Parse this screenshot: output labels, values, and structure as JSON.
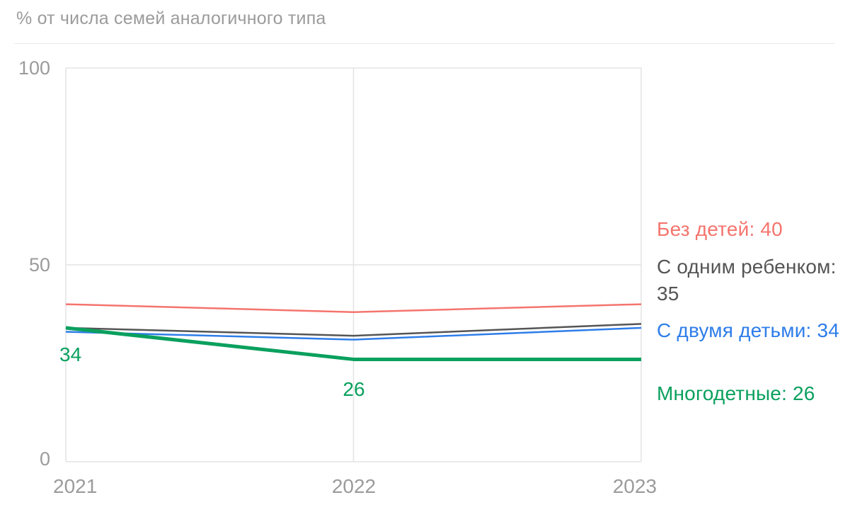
{
  "title": "% от числа семей аналогичного типа",
  "chart_data": {
    "type": "line",
    "title": "% от числа семей аналогичного типа",
    "x": [
      "2021",
      "2022",
      "2023"
    ],
    "series": [
      {
        "name": "Без детей",
        "values": [
          40,
          38,
          40
        ],
        "color": "#f5746e",
        "width": 2.5
      },
      {
        "name": "С одним ребенком",
        "values": [
          34,
          32,
          35
        ],
        "color": "#555555",
        "width": 2.5
      },
      {
        "name": "С двумя детьми",
        "values": [
          33,
          31,
          34
        ],
        "color": "#2e7de9",
        "width": 2.5
      },
      {
        "name": "Многодетные",
        "values": [
          34,
          26,
          26
        ],
        "color": "#0aa05e",
        "width": 5
      }
    ],
    "ylim": [
      0,
      100
    ],
    "yticks": [
      0,
      50,
      100
    ],
    "xticks": [
      "2021",
      "2022",
      "2023"
    ],
    "grid": "on",
    "legend_position": "right",
    "point_labels": [
      {
        "series": "Многодетные",
        "x_index": 0,
        "text": "34"
      },
      {
        "series": "Многодетные",
        "x_index": 1,
        "text": "26"
      }
    ]
  },
  "legend": [
    {
      "label": "Без детей: 40",
      "color": "#f5746e"
    },
    {
      "label": "С одним ребенком: 35",
      "color": "#555555"
    },
    {
      "label": "С двумя детьми: 34",
      "color": "#2e7de9"
    },
    {
      "label": "Многодетные: 26",
      "color": "#0aa05e"
    }
  ],
  "colors": {
    "grid": "#e3e3e3",
    "axis_text": "#9b9b9b"
  }
}
